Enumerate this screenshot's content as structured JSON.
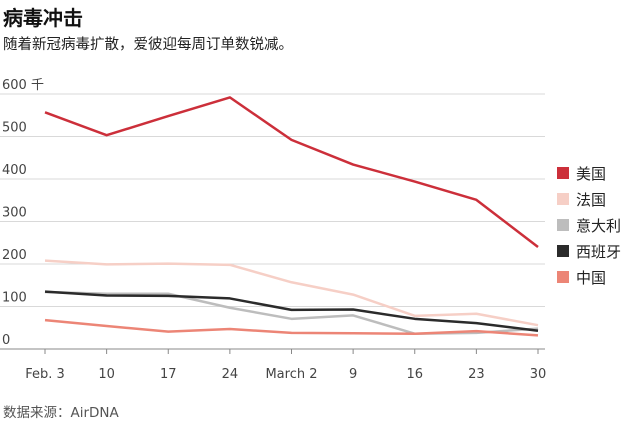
{
  "title": "病毒冲击",
  "subtitle": "随着新冠病毒扩散，爱彼迎每周订单数锐减。",
  "source": "数据来源：AirDNA",
  "chart_data": {
    "type": "line",
    "categories": [
      "Feb. 3",
      "10",
      "17",
      "24",
      "March 2",
      "9",
      "16",
      "23",
      "30"
    ],
    "y_unit_label": "千",
    "yticks": [
      0,
      100,
      200,
      300,
      400,
      500,
      600
    ],
    "ylim": [
      0,
      600
    ],
    "grid": true,
    "legend_position": "right",
    "series": [
      {
        "name": "美国",
        "color": "#cc2f3a",
        "values": [
          557,
          503,
          548,
          592,
          492,
          434,
          394,
          351,
          240
        ]
      },
      {
        "name": "法国",
        "color": "#f6cfc6",
        "values": [
          208,
          199,
          201,
          198,
          157,
          128,
          78,
          83,
          56
        ]
      },
      {
        "name": "意大利",
        "color": "#bdbdbd",
        "values": [
          134,
          130,
          130,
          97,
          71,
          79,
          36,
          38,
          48
        ]
      },
      {
        "name": "西班牙",
        "color": "#2b2b2b",
        "values": [
          135,
          126,
          125,
          119,
          92,
          93,
          71,
          61,
          43
        ]
      },
      {
        "name": "中国",
        "color": "#ec8576",
        "values": [
          68,
          54,
          41,
          47,
          38,
          37,
          36,
          42,
          32
        ]
      }
    ]
  }
}
